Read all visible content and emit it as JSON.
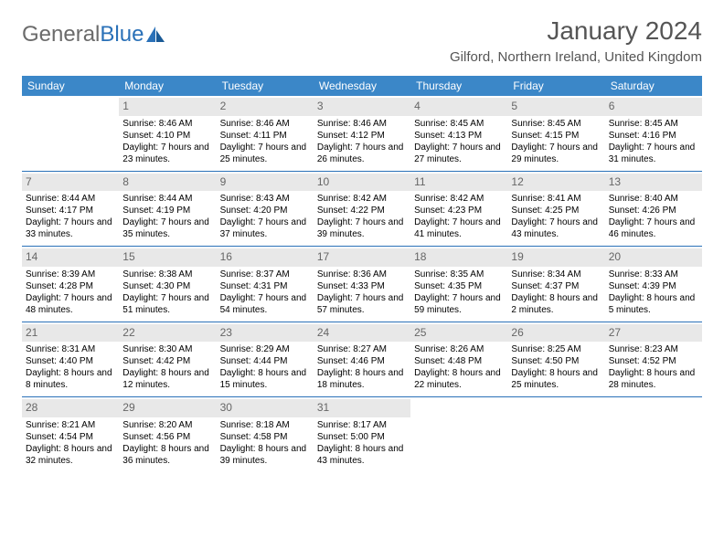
{
  "logo": {
    "text1": "General",
    "text2": "Blue"
  },
  "title": "January 2024",
  "location": "Gilford, Northern Ireland, United Kingdom",
  "colors": {
    "header_bg": "#3b87c8",
    "header_fg": "#ffffff",
    "border": "#2a71b8",
    "daynum_bg": "#e8e8e8",
    "daynum_fg": "#666666",
    "title_fg": "#555555",
    "logo_gray": "#6b6b6b",
    "logo_blue": "#2a71b8"
  },
  "weekdays": [
    "Sunday",
    "Monday",
    "Tuesday",
    "Wednesday",
    "Thursday",
    "Friday",
    "Saturday"
  ],
  "weeks": [
    [
      null,
      {
        "n": "1",
        "sr": "8:46 AM",
        "ss": "4:10 PM",
        "dl": "7 hours and 23 minutes."
      },
      {
        "n": "2",
        "sr": "8:46 AM",
        "ss": "4:11 PM",
        "dl": "7 hours and 25 minutes."
      },
      {
        "n": "3",
        "sr": "8:46 AM",
        "ss": "4:12 PM",
        "dl": "7 hours and 26 minutes."
      },
      {
        "n": "4",
        "sr": "8:45 AM",
        "ss": "4:13 PM",
        "dl": "7 hours and 27 minutes."
      },
      {
        "n": "5",
        "sr": "8:45 AM",
        "ss": "4:15 PM",
        "dl": "7 hours and 29 minutes."
      },
      {
        "n": "6",
        "sr": "8:45 AM",
        "ss": "4:16 PM",
        "dl": "7 hours and 31 minutes."
      }
    ],
    [
      {
        "n": "7",
        "sr": "8:44 AM",
        "ss": "4:17 PM",
        "dl": "7 hours and 33 minutes."
      },
      {
        "n": "8",
        "sr": "8:44 AM",
        "ss": "4:19 PM",
        "dl": "7 hours and 35 minutes."
      },
      {
        "n": "9",
        "sr": "8:43 AM",
        "ss": "4:20 PM",
        "dl": "7 hours and 37 minutes."
      },
      {
        "n": "10",
        "sr": "8:42 AM",
        "ss": "4:22 PM",
        "dl": "7 hours and 39 minutes."
      },
      {
        "n": "11",
        "sr": "8:42 AM",
        "ss": "4:23 PM",
        "dl": "7 hours and 41 minutes."
      },
      {
        "n": "12",
        "sr": "8:41 AM",
        "ss": "4:25 PM",
        "dl": "7 hours and 43 minutes."
      },
      {
        "n": "13",
        "sr": "8:40 AM",
        "ss": "4:26 PM",
        "dl": "7 hours and 46 minutes."
      }
    ],
    [
      {
        "n": "14",
        "sr": "8:39 AM",
        "ss": "4:28 PM",
        "dl": "7 hours and 48 minutes."
      },
      {
        "n": "15",
        "sr": "8:38 AM",
        "ss": "4:30 PM",
        "dl": "7 hours and 51 minutes."
      },
      {
        "n": "16",
        "sr": "8:37 AM",
        "ss": "4:31 PM",
        "dl": "7 hours and 54 minutes."
      },
      {
        "n": "17",
        "sr": "8:36 AM",
        "ss": "4:33 PM",
        "dl": "7 hours and 57 minutes."
      },
      {
        "n": "18",
        "sr": "8:35 AM",
        "ss": "4:35 PM",
        "dl": "7 hours and 59 minutes."
      },
      {
        "n": "19",
        "sr": "8:34 AM",
        "ss": "4:37 PM",
        "dl": "8 hours and 2 minutes."
      },
      {
        "n": "20",
        "sr": "8:33 AM",
        "ss": "4:39 PM",
        "dl": "8 hours and 5 minutes."
      }
    ],
    [
      {
        "n": "21",
        "sr": "8:31 AM",
        "ss": "4:40 PM",
        "dl": "8 hours and 8 minutes."
      },
      {
        "n": "22",
        "sr": "8:30 AM",
        "ss": "4:42 PM",
        "dl": "8 hours and 12 minutes."
      },
      {
        "n": "23",
        "sr": "8:29 AM",
        "ss": "4:44 PM",
        "dl": "8 hours and 15 minutes."
      },
      {
        "n": "24",
        "sr": "8:27 AM",
        "ss": "4:46 PM",
        "dl": "8 hours and 18 minutes."
      },
      {
        "n": "25",
        "sr": "8:26 AM",
        "ss": "4:48 PM",
        "dl": "8 hours and 22 minutes."
      },
      {
        "n": "26",
        "sr": "8:25 AM",
        "ss": "4:50 PM",
        "dl": "8 hours and 25 minutes."
      },
      {
        "n": "27",
        "sr": "8:23 AM",
        "ss": "4:52 PM",
        "dl": "8 hours and 28 minutes."
      }
    ],
    [
      {
        "n": "28",
        "sr": "8:21 AM",
        "ss": "4:54 PM",
        "dl": "8 hours and 32 minutes."
      },
      {
        "n": "29",
        "sr": "8:20 AM",
        "ss": "4:56 PM",
        "dl": "8 hours and 36 minutes."
      },
      {
        "n": "30",
        "sr": "8:18 AM",
        "ss": "4:58 PM",
        "dl": "8 hours and 39 minutes."
      },
      {
        "n": "31",
        "sr": "8:17 AM",
        "ss": "5:00 PM",
        "dl": "8 hours and 43 minutes."
      },
      null,
      null,
      null
    ]
  ],
  "labels": {
    "sunrise": "Sunrise:",
    "sunset": "Sunset:",
    "daylight": "Daylight:"
  }
}
